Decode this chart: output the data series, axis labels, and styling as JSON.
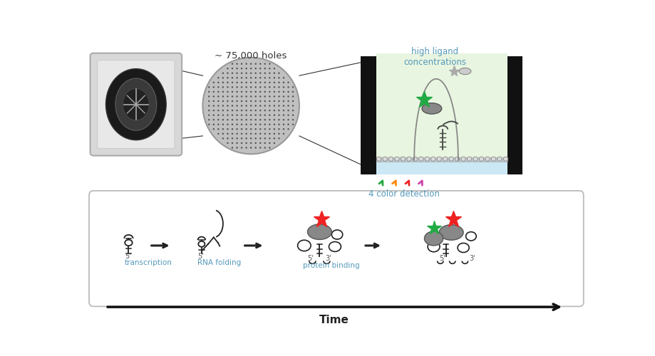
{
  "bg_color": "#ffffff",
  "text_color_blue": "#5599bb",
  "text_color_dark": "#333333",
  "label_75000": "~ 75,000 holes",
  "label_high_ligand": "high ligand\nconcentrations",
  "label_4color": "4 color detection",
  "label_transcription": "transcription",
  "label_rna_folding": "RNA folding",
  "label_protein_binding": "protein binding",
  "label_time": "Time",
  "green_color": "#22aa44",
  "red_color": "#ee2222",
  "orange_color": "#ff8800",
  "magenta_color": "#cc44aa",
  "gray_dark": "#666666",
  "gray_mid": "#999999",
  "gray_light": "#bbbbbb",
  "light_green_fill": "#e8f5e0",
  "light_blue_fill": "#cce8f4",
  "black_color": "#111111",
  "rna_color": "#222222",
  "protein_gray": "#888888"
}
